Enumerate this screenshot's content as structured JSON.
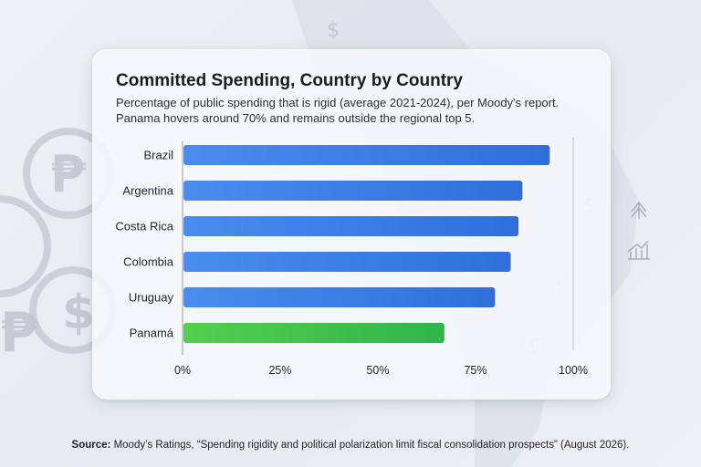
{
  "chart_data": {
    "type": "bar",
    "orientation": "horizontal",
    "title": "Committed Spending, Country by Country",
    "subtitle_lines": [
      "Percentage of public spending that is rigid (average 2021-2024), per Moody's report.",
      "Panama hovers around 70% and remains outside the regional top 5."
    ],
    "categories": [
      "Brazil",
      "Argentina",
      "Costa Rica",
      "Colombia",
      "Uruguay",
      "Panamá"
    ],
    "values": [
      94,
      87,
      86,
      84,
      80,
      67
    ],
    "xlim": [
      0,
      100
    ],
    "ticks": [
      "0%",
      "25%",
      "50%",
      "75%",
      "100%"
    ],
    "tick_values": [
      0,
      25,
      50,
      75,
      100
    ],
    "highlight_category": "Panamá",
    "colors": {
      "bar": "#2f6fdc",
      "bar_light": "#4a8cef",
      "highlight": "#2fb54a",
      "highlight_light": "#54cf4f"
    },
    "grid": false,
    "legend": "none"
  },
  "source": {
    "label": "Source:",
    "text": "Moody’s Ratings, “Spending rigidity and political polarization limit fiscal consolidation prospects” (August 2026)."
  }
}
